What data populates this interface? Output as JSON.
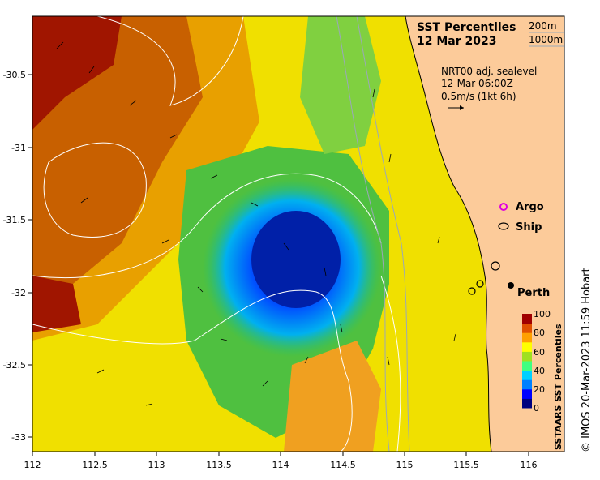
{
  "title": {
    "line1": "SST Percentiles",
    "line2": "12 Mar 2023"
  },
  "contour_key": {
    "depth1": "200m",
    "depth2": "1000m"
  },
  "current_note": {
    "line1": "NRT00 adj. sealevel",
    "line2": "12-Mar 06:00Z",
    "line3": "0.5m/s (1kt 6h)"
  },
  "markers": {
    "argo": "Argo",
    "ship": "Ship",
    "city": "Perth"
  },
  "colorbar": {
    "label": "SSTAARS SST Percentiles",
    "ticks": [
      "100",
      "80",
      "60",
      "40",
      "20",
      "0"
    ],
    "colors": [
      "#00007f",
      "#0000ff",
      "#0080ff",
      "#00d0ff",
      "#40ff80",
      "#a0e020",
      "#ffff00",
      "#ffa000",
      "#e05000",
      "#a00000"
    ]
  },
  "axes": {
    "x_ticks": [
      "112",
      "112.5",
      "113",
      "113.5",
      "114",
      "114.5",
      "115",
      "115.5",
      "116"
    ],
    "y_ticks": [
      "-30.5",
      "-31",
      "-31.5",
      "-32",
      "-32.5",
      "-33"
    ]
  },
  "credit": "© IMOS 20-Mar-2023 11:59 Hobart",
  "colors": {
    "land": "#fccb9a",
    "coastline": "#000000",
    "contour": "#ffffff"
  }
}
